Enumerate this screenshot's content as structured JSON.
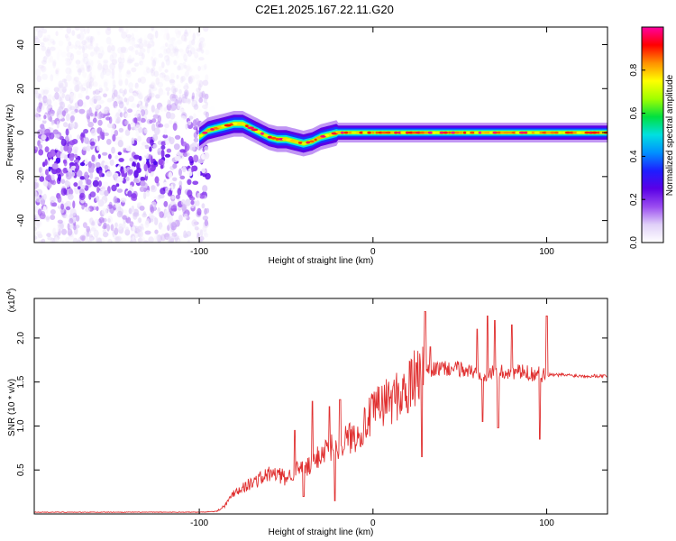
{
  "title": "C2E1.2025.167.22.11.G20",
  "chart_data": [
    {
      "type": "heatmap",
      "panel": "top",
      "xlabel": "Height of straight line (km)",
      "ylabel": "Frequency (Hz)",
      "xlim": [
        -195,
        135
      ],
      "ylim": [
        -50,
        48
      ],
      "xticks": [
        -100,
        0,
        100
      ],
      "yticks": [
        -40,
        -20,
        0,
        20,
        40
      ],
      "colorbar": {
        "label": "Normalized spectral amplitude",
        "range": [
          0.0,
          1.0
        ],
        "ticks": [
          0.0,
          0.2,
          0.4,
          0.6,
          0.8
        ],
        "tick_labels": [
          "0.0",
          "0.2",
          "0.4",
          "0.6",
          "0.8"
        ],
        "colormap": [
          "#ffffff",
          "#e0d0f8",
          "#9a4cf0",
          "#5a00e6",
          "#1e1eff",
          "#0090ff",
          "#00e0e0",
          "#00e040",
          "#a0ff00",
          "#ffff00",
          "#ff9000",
          "#ff0000",
          "#ff00a0"
        ]
      },
      "noise_region": {
        "x": [
          -195,
          -95
        ],
        "freq": [
          -50,
          48
        ],
        "amplitude": [
          0.0,
          0.25
        ]
      },
      "ridge": {
        "x": [
          -100,
          -95,
          -90,
          -85,
          -80,
          -75,
          -70,
          -65,
          -60,
          -55,
          -50,
          -45,
          -40,
          -35,
          -30,
          -25,
          -20,
          -10,
          0,
          20,
          40,
          60,
          80,
          100,
          120,
          135
        ],
        "freq": [
          -2,
          1,
          2,
          3,
          4,
          4,
          2,
          0,
          -2,
          -3,
          -3,
          -4,
          -5,
          -4,
          -2,
          -1,
          0,
          0,
          0,
          0,
          0,
          0,
          0,
          0,
          0,
          0
        ]
      }
    },
    {
      "type": "line",
      "panel": "bottom",
      "xlabel": "Height of straight line (km)",
      "ylabel": "SNR (10 * v/v)",
      "y_multiplier": "(x10^4)",
      "y_multiplier_base": "(x10",
      "y_multiplier_exp": "4",
      "y_multiplier_end": ")",
      "xlim": [
        -195,
        135
      ],
      "ylim": [
        0,
        2.45
      ],
      "xticks": [
        -100,
        0,
        100
      ],
      "yticks": [
        0.5,
        1.0,
        1.5,
        2.0
      ],
      "ytick_labels": [
        "0.5",
        "1.0",
        "1.5",
        "2.0"
      ],
      "color": "#e03030",
      "series": [
        {
          "x": [
            -195,
            -150,
            -100,
            -90,
            -85,
            -80,
            -75,
            -70,
            -65,
            -60,
            -55,
            -50,
            -45,
            -40,
            -35,
            -30,
            -25,
            -20,
            -15,
            -10,
            -5,
            0,
            5,
            10,
            15,
            20,
            25,
            30,
            35,
            40,
            50,
            60,
            70,
            80,
            90,
            100,
            110,
            120,
            135
          ],
          "values": [
            0.02,
            0.02,
            0.02,
            0.03,
            0.1,
            0.25,
            0.3,
            0.35,
            0.4,
            0.45,
            0.45,
            0.4,
            0.5,
            0.5,
            0.55,
            0.7,
            0.75,
            0.8,
            0.85,
            0.9,
            1.0,
            1.15,
            1.25,
            1.3,
            1.35,
            1.45,
            1.55,
            1.6,
            1.65,
            1.65,
            1.65,
            1.6,
            1.6,
            1.62,
            1.6,
            1.58,
            1.58,
            1.57,
            1.57
          ]
        }
      ],
      "spikes": [
        {
          "x": -45,
          "value": 0.95
        },
        {
          "x": -40,
          "value": 0.2
        },
        {
          "x": -35,
          "value": 1.28
        },
        {
          "x": -25,
          "value": 1.22
        },
        {
          "x": -22,
          "value": 0.15
        },
        {
          "x": -19,
          "value": 1.3
        },
        {
          "x": 20,
          "value": 1.15
        },
        {
          "x": 25,
          "value": 1.72
        },
        {
          "x": 28,
          "value": 0.65
        },
        {
          "x": 30,
          "value": 2.3
        },
        {
          "x": 33,
          "value": 1.9
        },
        {
          "x": 60,
          "value": 2.1
        },
        {
          "x": 63,
          "value": 1.05
        },
        {
          "x": 66,
          "value": 2.25
        },
        {
          "x": 70,
          "value": 2.2
        },
        {
          "x": 72,
          "value": 0.98
        },
        {
          "x": 80,
          "value": 2.15
        },
        {
          "x": 96,
          "value": 0.85
        },
        {
          "x": 100,
          "value": 2.25
        }
      ]
    }
  ]
}
